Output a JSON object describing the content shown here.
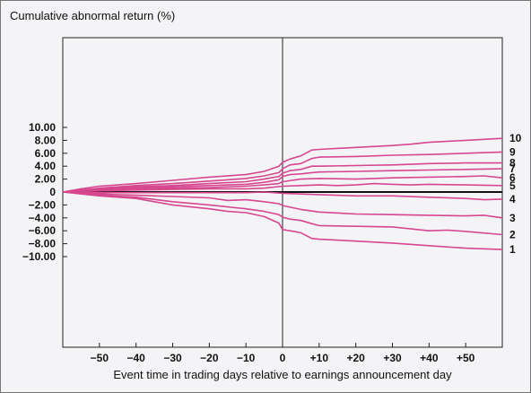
{
  "chart_data": {
    "type": "line",
    "title": "Cumulative abnormal return (%)",
    "xlabel": "Event time in trading days relative to earnings announcement day",
    "ylabel": "",
    "xlim": [
      -60,
      60
    ],
    "ylim": [
      -12,
      12
    ],
    "x_ticks": [
      -50,
      -40,
      -30,
      -20,
      -10,
      0,
      10,
      20,
      30,
      40,
      50
    ],
    "x_tick_labels": [
      "−50",
      "−40",
      "−30",
      "−20",
      "−10",
      "0",
      "+10",
      "+20",
      "+30",
      "+40",
      "+50"
    ],
    "y_ticks": [
      10,
      8,
      6,
      4,
      2,
      0,
      -2,
      -4,
      -6,
      -8,
      -10
    ],
    "y_tick_labels": [
      "10.00",
      "8.00",
      "6.00",
      "4.00",
      "2.00",
      "0",
      "−2.00",
      "−4.00",
      "−6.00",
      "−8.00",
      "−10.00"
    ],
    "grid": false,
    "line_color": "#d6478f",
    "series": [
      {
        "label": "10",
        "points": [
          [
            -60,
            0
          ],
          [
            -55,
            0.5
          ],
          [
            -50,
            0.9
          ],
          [
            -40,
            1.3
          ],
          [
            -30,
            1.8
          ],
          [
            -20,
            2.3
          ],
          [
            -10,
            2.7
          ],
          [
            -5,
            3.2
          ],
          [
            -1,
            4.0
          ],
          [
            0,
            4.6
          ],
          [
            2,
            5.1
          ],
          [
            5,
            5.6
          ],
          [
            8,
            6.5
          ],
          [
            10,
            6.6
          ],
          [
            20,
            6.9
          ],
          [
            30,
            7.2
          ],
          [
            35,
            7.4
          ],
          [
            40,
            7.7
          ],
          [
            50,
            8.0
          ],
          [
            60,
            8.3
          ]
        ]
      },
      {
        "label": "9",
        "points": [
          [
            -60,
            0
          ],
          [
            -50,
            0.6
          ],
          [
            -40,
            1.0
          ],
          [
            -30,
            1.3
          ],
          [
            -20,
            1.7
          ],
          [
            -10,
            2.1
          ],
          [
            -5,
            2.5
          ],
          [
            -1,
            3.0
          ],
          [
            0,
            3.6
          ],
          [
            2,
            4.2
          ],
          [
            5,
            4.4
          ],
          [
            8,
            5.2
          ],
          [
            10,
            5.4
          ],
          [
            20,
            5.5
          ],
          [
            30,
            5.7
          ],
          [
            40,
            5.8
          ],
          [
            50,
            6.0
          ],
          [
            60,
            6.2
          ]
        ]
      },
      {
        "label": "8",
        "points": [
          [
            -60,
            0
          ],
          [
            -50,
            0.5
          ],
          [
            -40,
            0.8
          ],
          [
            -30,
            1.0
          ],
          [
            -20,
            1.3
          ],
          [
            -10,
            1.6
          ],
          [
            -5,
            2.0
          ],
          [
            -1,
            2.4
          ],
          [
            0,
            2.9
          ],
          [
            2,
            3.3
          ],
          [
            5,
            3.5
          ],
          [
            8,
            4.0
          ],
          [
            10,
            4.0
          ],
          [
            20,
            4.1
          ],
          [
            30,
            4.2
          ],
          [
            40,
            4.4
          ],
          [
            50,
            4.5
          ],
          [
            60,
            4.5
          ]
        ]
      },
      {
        "label": "7",
        "points": [
          [
            -60,
            0
          ],
          [
            -50,
            0.4
          ],
          [
            -40,
            0.6
          ],
          [
            -30,
            0.8
          ],
          [
            -20,
            1.0
          ],
          [
            -10,
            1.2
          ],
          [
            -5,
            1.5
          ],
          [
            -1,
            1.9
          ],
          [
            0,
            2.4
          ],
          [
            2,
            2.7
          ],
          [
            5,
            2.8
          ],
          [
            8,
            3.0
          ],
          [
            10,
            3.1
          ],
          [
            20,
            3.2
          ],
          [
            30,
            3.3
          ],
          [
            40,
            3.4
          ],
          [
            50,
            3.5
          ],
          [
            60,
            3.6
          ]
        ]
      },
      {
        "label": "6",
        "points": [
          [
            -60,
            0
          ],
          [
            -50,
            0.3
          ],
          [
            -40,
            0.5
          ],
          [
            -30,
            0.6
          ],
          [
            -20,
            0.7
          ],
          [
            -10,
            0.9
          ],
          [
            -5,
            1.1
          ],
          [
            -1,
            1.3
          ],
          [
            0,
            1.6
          ],
          [
            5,
            2.0
          ],
          [
            10,
            2.1
          ],
          [
            20,
            2.0
          ],
          [
            25,
            2.1
          ],
          [
            30,
            2.2
          ],
          [
            40,
            2.3
          ],
          [
            50,
            2.4
          ],
          [
            55,
            2.5
          ],
          [
            60,
            2.2
          ]
        ]
      },
      {
        "label": "5",
        "points": [
          [
            -60,
            0
          ],
          [
            -50,
            0.2
          ],
          [
            -40,
            0.3
          ],
          [
            -30,
            0.4
          ],
          [
            -20,
            0.5
          ],
          [
            -10,
            0.5
          ],
          [
            -5,
            0.6
          ],
          [
            0,
            0.9
          ],
          [
            5,
            1.0
          ],
          [
            10,
            1.1
          ],
          [
            15,
            1.0
          ],
          [
            20,
            1.1
          ],
          [
            25,
            1.3
          ],
          [
            30,
            1.2
          ],
          [
            35,
            1.1
          ],
          [
            40,
            1.2
          ],
          [
            50,
            1.1
          ],
          [
            60,
            1.0
          ]
        ]
      },
      {
        "label": "4",
        "points": [
          [
            -60,
            0
          ],
          [
            -50,
            -0.1
          ],
          [
            -40,
            -0.1
          ],
          [
            -30,
            -0.1
          ],
          [
            -20,
            -0.1
          ],
          [
            -10,
            -0.1
          ],
          [
            -5,
            0
          ],
          [
            0,
            -0.2
          ],
          [
            10,
            -0.4
          ],
          [
            20,
            -0.6
          ],
          [
            30,
            -0.6
          ],
          [
            40,
            -0.8
          ],
          [
            50,
            -1.0
          ],
          [
            55,
            -1.2
          ],
          [
            60,
            -1.1
          ]
        ]
      },
      {
        "label": "3",
        "points": [
          [
            -60,
            0
          ],
          [
            -50,
            -0.3
          ],
          [
            -40,
            -0.5
          ],
          [
            -30,
            -0.7
          ],
          [
            -20,
            -0.9
          ],
          [
            -15,
            -1.3
          ],
          [
            -10,
            -1.2
          ],
          [
            -5,
            -1.5
          ],
          [
            -1,
            -1.8
          ],
          [
            0,
            -2.1
          ],
          [
            5,
            -2.7
          ],
          [
            10,
            -3.1
          ],
          [
            20,
            -3.4
          ],
          [
            30,
            -3.5
          ],
          [
            40,
            -3.6
          ],
          [
            50,
            -3.7
          ],
          [
            55,
            -3.6
          ],
          [
            60,
            -4.0
          ]
        ]
      },
      {
        "label": "2",
        "points": [
          [
            -60,
            0
          ],
          [
            -50,
            -0.5
          ],
          [
            -40,
            -0.8
          ],
          [
            -30,
            -1.5
          ],
          [
            -20,
            -2.0
          ],
          [
            -15,
            -2.3
          ],
          [
            -10,
            -2.6
          ],
          [
            -5,
            -3.0
          ],
          [
            -1,
            -3.5
          ],
          [
            0,
            -3.9
          ],
          [
            2,
            -4.2
          ],
          [
            5,
            -4.4
          ],
          [
            8,
            -4.9
          ],
          [
            10,
            -5.2
          ],
          [
            20,
            -5.3
          ],
          [
            30,
            -5.4
          ],
          [
            40,
            -6.0
          ],
          [
            45,
            -5.9
          ],
          [
            50,
            -6.1
          ],
          [
            60,
            -6.6
          ]
        ]
      },
      {
        "label": "1",
        "points": [
          [
            -60,
            0
          ],
          [
            -50,
            -0.6
          ],
          [
            -40,
            -1.0
          ],
          [
            -30,
            -2.0
          ],
          [
            -20,
            -2.6
          ],
          [
            -15,
            -3.0
          ],
          [
            -10,
            -3.2
          ],
          [
            -5,
            -3.8
          ],
          [
            -1,
            -4.8
          ],
          [
            0,
            -5.8
          ],
          [
            2,
            -6.0
          ],
          [
            5,
            -6.3
          ],
          [
            8,
            -7.2
          ],
          [
            10,
            -7.3
          ],
          [
            20,
            -7.6
          ],
          [
            30,
            -7.9
          ],
          [
            40,
            -8.3
          ],
          [
            50,
            -8.7
          ],
          [
            60,
            -8.9
          ]
        ]
      }
    ]
  }
}
